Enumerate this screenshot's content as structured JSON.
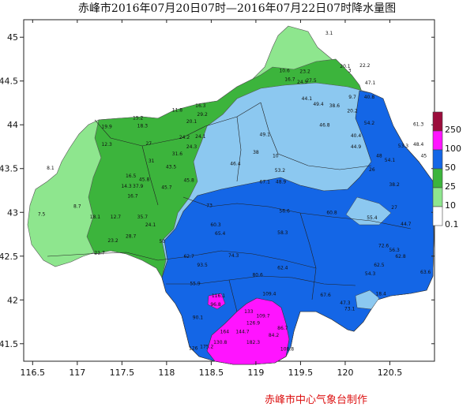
{
  "title": "赤峰市2016年07月20日07时—2016年07月22日07时降水量图",
  "credit": "赤峰市中心气象台制作",
  "axes": {
    "x_ticks": [
      "116.5",
      "117",
      "117.5",
      "118",
      "118.5",
      "119",
      "119.5",
      "120",
      "120.5"
    ],
    "y_ticks": [
      "45",
      "44.5",
      "44",
      "43.5",
      "43",
      "42.5",
      "42",
      "41.5"
    ],
    "x_range": [
      116.4,
      121.0
    ],
    "y_range": [
      41.3,
      45.2
    ]
  },
  "legend": [
    {
      "label": "250",
      "color": "#9c0d3c"
    },
    {
      "label": "100",
      "color": "#ff14ff"
    },
    {
      "label": "50",
      "color": "#1466e6"
    },
    {
      "label": "25",
      "color": "#3cb43c"
    },
    {
      "label": "10",
      "color": "#8ee68e"
    },
    {
      "label": "0.1",
      "color": "#ffffff"
    }
  ],
  "stations": [
    {
      "v": "3.1",
      "lon": 119.82,
      "lat": 45.03
    },
    {
      "v": "20.1",
      "lon": 120.0,
      "lat": 44.65
    },
    {
      "v": "22.2",
      "lon": 120.22,
      "lat": 44.66
    },
    {
      "v": "3",
      "lon": 120.05,
      "lat": 44.6
    },
    {
      "v": "10.6",
      "lon": 119.32,
      "lat": 44.6
    },
    {
      "v": "23.2",
      "lon": 119.55,
      "lat": 44.59
    },
    {
      "v": "47.1",
      "lon": 120.28,
      "lat": 44.46
    },
    {
      "v": "16.7",
      "lon": 119.38,
      "lat": 44.5
    },
    {
      "v": "24.5",
      "lon": 119.52,
      "lat": 44.47
    },
    {
      "v": "27.5",
      "lon": 119.62,
      "lat": 44.49
    },
    {
      "v": "44.1",
      "lon": 119.57,
      "lat": 44.28
    },
    {
      "v": "9.7",
      "lon": 120.08,
      "lat": 44.3
    },
    {
      "v": "40.8",
      "lon": 120.27,
      "lat": 44.3
    },
    {
      "v": "49.4",
      "lon": 119.7,
      "lat": 44.22
    },
    {
      "v": "38.6",
      "lon": 119.88,
      "lat": 44.2
    },
    {
      "v": "20.2",
      "lon": 120.08,
      "lat": 44.14
    },
    {
      "v": "16.3",
      "lon": 118.38,
      "lat": 44.2
    },
    {
      "v": "29.2",
      "lon": 118.4,
      "lat": 44.1
    },
    {
      "v": "11.8",
      "lon": 118.12,
      "lat": 44.15
    },
    {
      "v": "20.1",
      "lon": 118.28,
      "lat": 44.02
    },
    {
      "v": "15.2",
      "lon": 117.68,
      "lat": 44.06
    },
    {
      "v": "19.9",
      "lon": 117.33,
      "lat": 43.96
    },
    {
      "v": "18.3",
      "lon": 117.73,
      "lat": 43.97
    },
    {
      "v": "24.2",
      "lon": 118.2,
      "lat": 43.84
    },
    {
      "v": "24.1",
      "lon": 118.38,
      "lat": 43.85
    },
    {
      "v": "46.8",
      "lon": 119.77,
      "lat": 43.98
    },
    {
      "v": "54.2",
      "lon": 120.27,
      "lat": 44.0
    },
    {
      "v": "61.3",
      "lon": 120.82,
      "lat": 43.99
    },
    {
      "v": "49.1",
      "lon": 119.1,
      "lat": 43.87
    },
    {
      "v": "40.4",
      "lon": 120.12,
      "lat": 43.86
    },
    {
      "v": "12.3",
      "lon": 117.33,
      "lat": 43.76
    },
    {
      "v": "27",
      "lon": 117.8,
      "lat": 43.77
    },
    {
      "v": "24.3",
      "lon": 118.28,
      "lat": 43.73
    },
    {
      "v": "31.6",
      "lon": 118.12,
      "lat": 43.65
    },
    {
      "v": "44.9",
      "lon": 120.12,
      "lat": 43.73
    },
    {
      "v": "53.3",
      "lon": 120.65,
      "lat": 43.74
    },
    {
      "v": "48.4",
      "lon": 120.82,
      "lat": 43.76
    },
    {
      "v": "38",
      "lon": 119.0,
      "lat": 43.67
    },
    {
      "v": "10",
      "lon": 119.22,
      "lat": 43.63
    },
    {
      "v": "48",
      "lon": 120.38,
      "lat": 43.63
    },
    {
      "v": "54.1",
      "lon": 120.5,
      "lat": 43.58
    },
    {
      "v": "45",
      "lon": 120.88,
      "lat": 43.63
    },
    {
      "v": "31",
      "lon": 117.83,
      "lat": 43.57
    },
    {
      "v": "46.4",
      "lon": 118.77,
      "lat": 43.54
    },
    {
      "v": "26",
      "lon": 120.3,
      "lat": 43.47
    },
    {
      "v": "43.5",
      "lon": 118.05,
      "lat": 43.5
    },
    {
      "v": "16.5",
      "lon": 117.6,
      "lat": 43.4
    },
    {
      "v": "53.2",
      "lon": 119.27,
      "lat": 43.46
    },
    {
      "v": "45.8",
      "lon": 117.75,
      "lat": 43.36
    },
    {
      "v": "8.1",
      "lon": 116.7,
      "lat": 43.49
    },
    {
      "v": "37.9",
      "lon": 117.68,
      "lat": 43.28
    },
    {
      "v": "45.8",
      "lon": 118.25,
      "lat": 43.35
    },
    {
      "v": "67.1",
      "lon": 119.1,
      "lat": 43.33
    },
    {
      "v": "48.9",
      "lon": 119.28,
      "lat": 43.33
    },
    {
      "v": "38.2",
      "lon": 120.55,
      "lat": 43.3
    },
    {
      "v": "14.3",
      "lon": 117.55,
      "lat": 43.28
    },
    {
      "v": "45.7",
      "lon": 118.0,
      "lat": 43.27
    },
    {
      "v": "16.7",
      "lon": 117.62,
      "lat": 43.17
    },
    {
      "v": "27",
      "lon": 120.55,
      "lat": 43.04
    },
    {
      "v": "8.7",
      "lon": 117.0,
      "lat": 43.05
    },
    {
      "v": "73",
      "lon": 118.48,
      "lat": 43.06
    },
    {
      "v": "7.5",
      "lon": 116.6,
      "lat": 42.96
    },
    {
      "v": "56.6",
      "lon": 119.32,
      "lat": 43.0
    },
    {
      "v": "18.1",
      "lon": 117.2,
      "lat": 42.93
    },
    {
      "v": "12.7",
      "lon": 117.43,
      "lat": 42.93
    },
    {
      "v": "35.7",
      "lon": 117.73,
      "lat": 42.93
    },
    {
      "v": "60.8",
      "lon": 119.85,
      "lat": 42.98
    },
    {
      "v": "55.4",
      "lon": 120.3,
      "lat": 42.92
    },
    {
      "v": "24.1",
      "lon": 117.82,
      "lat": 42.84
    },
    {
      "v": "60.3",
      "lon": 118.55,
      "lat": 42.84
    },
    {
      "v": "44.7",
      "lon": 120.68,
      "lat": 42.85
    },
    {
      "v": "28.7",
      "lon": 117.6,
      "lat": 42.71
    },
    {
      "v": "65.4",
      "lon": 118.6,
      "lat": 42.74
    },
    {
      "v": "58.3",
      "lon": 119.3,
      "lat": 42.75
    },
    {
      "v": "23.2",
      "lon": 117.4,
      "lat": 42.66
    },
    {
      "v": "21.7",
      "lon": 117.25,
      "lat": 42.52
    },
    {
      "v": "50",
      "lon": 117.95,
      "lat": 42.65
    },
    {
      "v": "72.6",
      "lon": 120.43,
      "lat": 42.6
    },
    {
      "v": "56.3",
      "lon": 120.55,
      "lat": 42.55
    },
    {
      "v": "62.7",
      "lon": 118.25,
      "lat": 42.48
    },
    {
      "v": "74.3",
      "lon": 118.75,
      "lat": 42.49
    },
    {
      "v": "62.8",
      "lon": 120.62,
      "lat": 42.48
    },
    {
      "v": "93.5",
      "lon": 118.4,
      "lat": 42.38
    },
    {
      "v": "62.4",
      "lon": 119.3,
      "lat": 42.35
    },
    {
      "v": "62.5",
      "lon": 120.38,
      "lat": 42.38
    },
    {
      "v": "63.6",
      "lon": 120.9,
      "lat": 42.3
    },
    {
      "v": "80.6",
      "lon": 119.02,
      "lat": 42.27
    },
    {
      "v": "54.3",
      "lon": 120.28,
      "lat": 42.28
    },
    {
      "v": "55.9",
      "lon": 118.32,
      "lat": 42.17
    },
    {
      "v": "67.6",
      "lon": 119.78,
      "lat": 42.04
    },
    {
      "v": "18.4",
      "lon": 120.4,
      "lat": 42.05
    },
    {
      "v": "109.4",
      "lon": 119.15,
      "lat": 42.05
    },
    {
      "v": "116.1",
      "lon": 118.58,
      "lat": 42.03
    },
    {
      "v": "96.8",
      "lon": 118.55,
      "lat": 41.93
    },
    {
      "v": "47.3",
      "lon": 120.0,
      "lat": 41.95
    },
    {
      "v": "133",
      "lon": 118.92,
      "lat": 41.85
    },
    {
      "v": "109.7",
      "lon": 119.08,
      "lat": 41.8
    },
    {
      "v": "73.1",
      "lon": 120.05,
      "lat": 41.88
    },
    {
      "v": "90.1",
      "lon": 118.35,
      "lat": 41.78
    },
    {
      "v": "126.9",
      "lon": 118.97,
      "lat": 41.72
    },
    {
      "v": "86.7",
      "lon": 119.3,
      "lat": 41.66
    },
    {
      "v": "164",
      "lon": 118.65,
      "lat": 41.62
    },
    {
      "v": "144.7",
      "lon": 118.85,
      "lat": 41.62
    },
    {
      "v": "84.2",
      "lon": 119.2,
      "lat": 41.58
    },
    {
      "v": "130.8",
      "lon": 118.6,
      "lat": 41.5
    },
    {
      "v": "182.3",
      "lon": 118.97,
      "lat": 41.5
    },
    {
      "v": "175.2",
      "lon": 118.45,
      "lat": 41.45
    },
    {
      "v": "108.8",
      "lon": 119.35,
      "lat": 41.42
    },
    {
      "v": "126",
      "lon": 118.3,
      "lat": 41.43
    }
  ]
}
